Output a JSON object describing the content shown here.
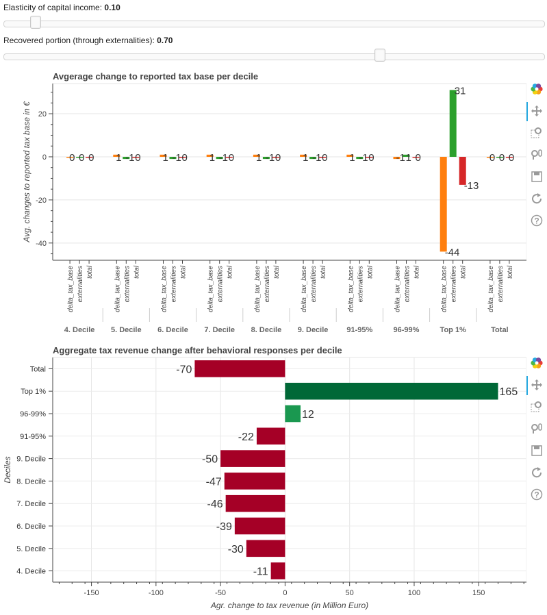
{
  "sliders": [
    {
      "label": "Elasticity of capital income: ",
      "value": "0.10",
      "fraction": 0.05
    },
    {
      "label": "Recovered portion (through externalities): ",
      "value": "0.70",
      "fraction": 0.7
    }
  ],
  "toolbar_icons": [
    "bokeh-logo-icon",
    "pan-icon",
    "box-zoom-icon",
    "wheel-zoom-icon",
    "save-icon",
    "reset-icon",
    "help-icon"
  ],
  "chart_data": [
    {
      "type": "bar",
      "title": "Avgerage change to reported tax base per decile",
      "xlabel": "",
      "ylabel": "Avg. changes to reported tax base in €",
      "ylim": [
        -48,
        34
      ],
      "yticks": [
        -40,
        -20,
        0,
        20
      ],
      "grid": true,
      "groups": [
        "4. Decile",
        "5. Decile",
        "6. Decile",
        "7. Decile",
        "8. Decile",
        "9. Decile",
        "91-95%",
        "96-99%",
        "Top 1%",
        "Total"
      ],
      "factors": [
        "delta_tax_base",
        "externalities",
        "total"
      ],
      "colors": [
        "#ff7f0e",
        "#2ca02c",
        "#d62728"
      ],
      "values": [
        [
          0,
          0,
          0
        ],
        [
          1,
          -1,
          0
        ],
        [
          1,
          -1,
          0
        ],
        [
          1,
          -1,
          0
        ],
        [
          1,
          -1,
          0
        ],
        [
          1,
          -1,
          0
        ],
        [
          1,
          -1,
          0
        ],
        [
          -1,
          1,
          0
        ],
        [
          -44,
          31,
          -13
        ],
        [
          0,
          0,
          0
        ]
      ],
      "labels": [
        [
          "0",
          "0",
          "0"
        ],
        [
          "1",
          "-1",
          "0"
        ],
        [
          "1",
          "-1",
          "0"
        ],
        [
          "1",
          "-1",
          "0"
        ],
        [
          "1",
          "-1",
          "0"
        ],
        [
          "1",
          "-1",
          "0"
        ],
        [
          "1",
          "-1",
          "0"
        ],
        [
          "-1",
          "1",
          "0"
        ],
        [
          "-44",
          "31",
          "-13"
        ],
        [
          "0",
          "0",
          "0"
        ]
      ]
    },
    {
      "type": "bar",
      "orientation": "horizontal",
      "title": "Aggregate tax revenue change after behavioral responses per decile",
      "xlabel": "Agr. change to tax revenue (in Million Euro)",
      "ylabel": "Deciles",
      "xlim": [
        -180,
        187
      ],
      "xticks": [
        -150,
        -100,
        -50,
        0,
        50,
        100,
        150
      ],
      "grid": true,
      "categories": [
        "Total",
        "Top 1%",
        "96-99%",
        "91-95%",
        "9. Decile",
        "8. Decile",
        "7. Decile",
        "6. Decile",
        "5. Decile",
        "4. Decile"
      ],
      "values": [
        -70,
        165,
        12,
        -22,
        -50,
        -47,
        -46,
        -39,
        -30,
        -11
      ],
      "colors": {
        "negative": "#a50026",
        "positive_large": "#006837",
        "positive_small": "#1a9850"
      }
    }
  ]
}
